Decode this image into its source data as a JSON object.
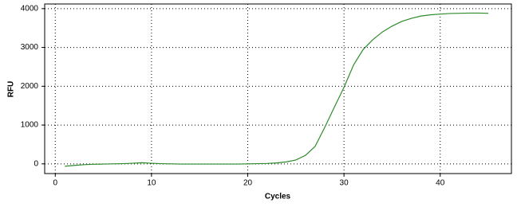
{
  "chart_data": {
    "type": "line",
    "x_label": "Cycles",
    "y_label": "RFU",
    "x": [
      1,
      2,
      3,
      4,
      5,
      6,
      7,
      8,
      9,
      10,
      11,
      12,
      13,
      14,
      15,
      16,
      17,
      18,
      19,
      20,
      21,
      22,
      23,
      24,
      25,
      26,
      27,
      28,
      29,
      30,
      31,
      32,
      33,
      34,
      35,
      36,
      37,
      38,
      39,
      40,
      41,
      42,
      43,
      44,
      45
    ],
    "series": [
      {
        "name": "RFU",
        "color": "#2e8b2e",
        "values": [
          -60,
          -40,
          -20,
          -10,
          -5,
          0,
          5,
          15,
          30,
          15,
          5,
          0,
          -5,
          -5,
          -5,
          -5,
          -5,
          -5,
          -5,
          0,
          5,
          10,
          25,
          50,
          100,
          220,
          450,
          940,
          1460,
          1970,
          2550,
          2950,
          3200,
          3400,
          3550,
          3670,
          3750,
          3810,
          3840,
          3860,
          3875,
          3880,
          3885,
          3885,
          3880
        ]
      }
    ],
    "xlim": [
      -1.1,
      47.4
    ],
    "ylim": [
      -250,
      4120
    ],
    "xticks": [
      0,
      10,
      20,
      30,
      40
    ],
    "yticks": [
      0,
      1000,
      2000,
      3000,
      4000
    ],
    "grid": true
  }
}
